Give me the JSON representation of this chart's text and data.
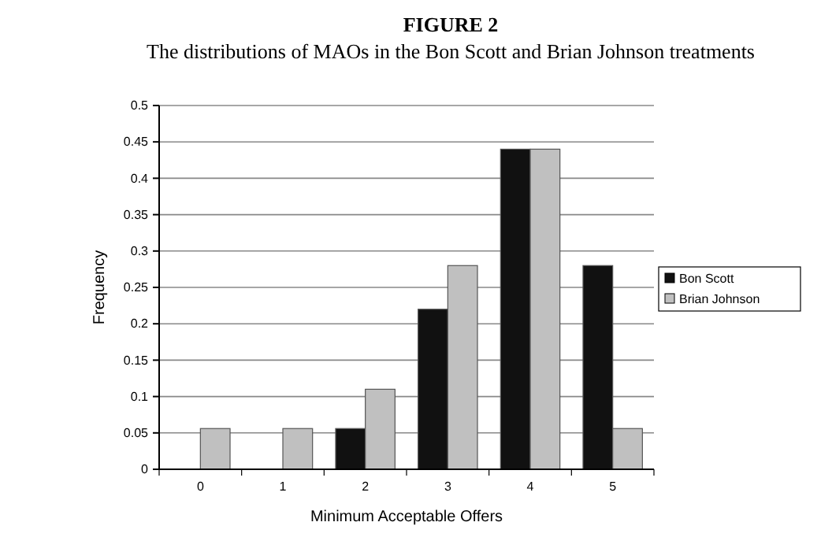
{
  "chart_data": {
    "type": "bar",
    "title": "FIGURE 2",
    "subtitle": "The distributions of MAOs in the Bon Scott and Brian Johnson treatments",
    "xlabel": "Minimum Acceptable Offers",
    "ylabel": "Frequency",
    "categories": [
      "0",
      "1",
      "2",
      "3",
      "4",
      "5"
    ],
    "series": [
      {
        "name": "Bon Scott",
        "color": "#111111",
        "values": [
          0,
          0,
          0.056,
          0.22,
          0.44,
          0.28
        ]
      },
      {
        "name": "Brian Johnson",
        "color": "#c0c0c0",
        "values": [
          0.056,
          0.056,
          0.11,
          0.28,
          0.44,
          0.056
        ]
      }
    ],
    "ylim": [
      0,
      0.5
    ],
    "yticks": [
      0,
      0.05,
      0.1,
      0.15,
      0.2,
      0.25,
      0.3,
      0.35,
      0.4,
      0.45,
      0.5
    ],
    "grid": "y",
    "legend": "right"
  }
}
